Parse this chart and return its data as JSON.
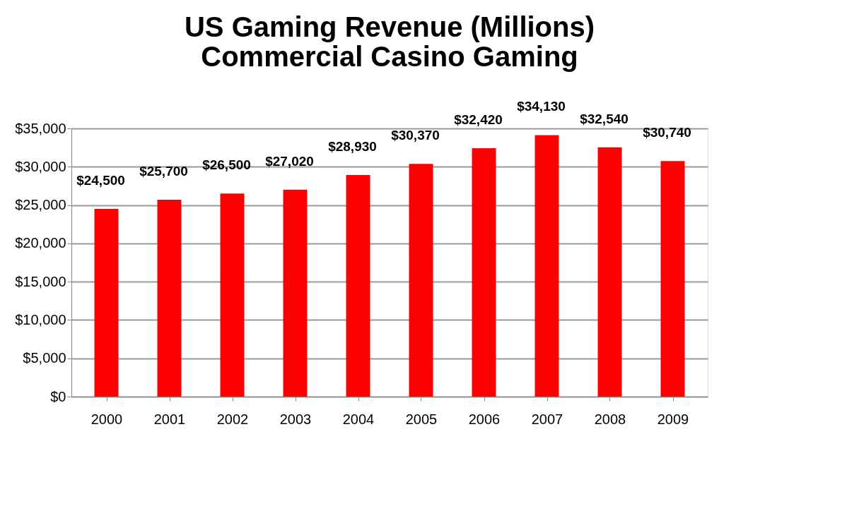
{
  "chart_data": {
    "type": "bar",
    "title": [
      "US Gaming Revenue (Millions)",
      "Commercial Casino Gaming"
    ],
    "categories": [
      "2000",
      "2001",
      "2002",
      "2003",
      "2004",
      "2005",
      "2006",
      "2007",
      "2008",
      "2009"
    ],
    "values": [
      24500,
      25700,
      26500,
      27020,
      28930,
      30370,
      32420,
      34130,
      32540,
      30740
    ],
    "value_labels": [
      "$24,500",
      "$25,700",
      "$26,500",
      "$27,020",
      "$28,930",
      "$30,370",
      "$32,420",
      "$34,130",
      "$32,540",
      "$30,740"
    ],
    "color": "#ff0000",
    "ylim": [
      0,
      35000
    ],
    "yticks": [
      {
        "value": 0,
        "label": "$0"
      },
      {
        "value": 5000,
        "label": "$5,000"
      },
      {
        "value": 10000,
        "label": "$10,000"
      },
      {
        "value": 15000,
        "label": "$15,000"
      },
      {
        "value": 20000,
        "label": "$20,000"
      },
      {
        "value": 25000,
        "label": "$25,000"
      },
      {
        "value": 30000,
        "label": "$30,000"
      },
      {
        "value": 35000,
        "label": "$35,000"
      }
    ],
    "grid": "y"
  }
}
